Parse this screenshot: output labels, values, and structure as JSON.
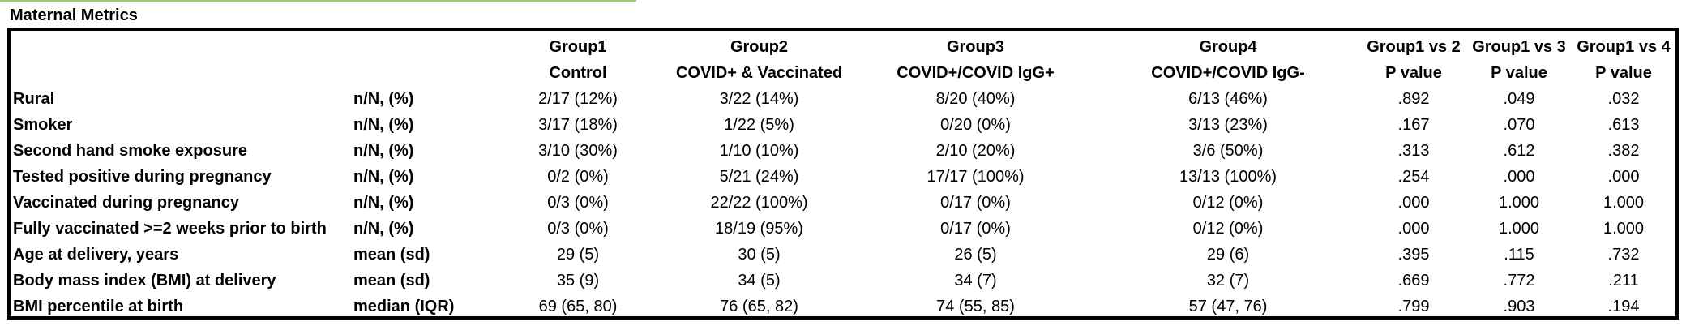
{
  "title": "Maternal Metrics",
  "columns": {
    "group_names": [
      "Group1",
      "Group2",
      "Group3",
      "Group4"
    ],
    "group_descriptions": [
      "Control",
      "COVID+ & Vaccinated",
      "COVID+/COVID IgG+",
      "COVID+/COVID IgG-"
    ],
    "comparisons": [
      "Group1 vs 2",
      "Group1 vs 3",
      "Group1 vs 4"
    ],
    "p_label": "P value"
  },
  "rows": [
    {
      "label": "Rural",
      "stat": "n/N, (%)",
      "g1": "2/17 (12%)",
      "g2": "3/22 (14%)",
      "g3": "8/20 (40%)",
      "g4": "6/13 (46%)",
      "p12": ".892",
      "p13": ".049",
      "p14": ".032"
    },
    {
      "label": "Smoker",
      "stat": "n/N, (%)",
      "g1": "3/17 (18%)",
      "g2": "1/22 (5%)",
      "g3": "0/20 (0%)",
      "g4": "3/13 (23%)",
      "p12": ".167",
      "p13": ".070",
      "p14": ".613"
    },
    {
      "label": "Second hand smoke exposure",
      "stat": "n/N, (%)",
      "g1": "3/10 (30%)",
      "g2": "1/10 (10%)",
      "g3": "2/10 (20%)",
      "g4": "3/6 (50%)",
      "p12": ".313",
      "p13": ".612",
      "p14": ".382"
    },
    {
      "label": "Tested positive during pregnancy",
      "stat": "n/N, (%)",
      "g1": "0/2 (0%)",
      "g2": "5/21 (24%)",
      "g3": "17/17 (100%)",
      "g4": "13/13 (100%)",
      "p12": ".254",
      "p13": ".000",
      "p14": ".000"
    },
    {
      "label": "Vaccinated during pregnancy",
      "stat": "n/N, (%)",
      "g1": "0/3 (0%)",
      "g2": "22/22 (100%)",
      "g3": "0/17 (0%)",
      "g4": "0/12 (0%)",
      "p12": ".000",
      "p13": "1.000",
      "p14": "1.000"
    },
    {
      "label": "Fully vaccinated >=2 weeks prior to birth",
      "stat": "n/N, (%)",
      "g1": "0/3 (0%)",
      "g2": "18/19 (95%)",
      "g3": "0/17 (0%)",
      "g4": "0/12 (0%)",
      "p12": ".000",
      "p13": "1.000",
      "p14": "1.000"
    },
    {
      "label": "Age at delivery, years",
      "stat": "mean (sd)",
      "g1": "29 (5)",
      "g2": "30 (5)",
      "g3": "26 (5)",
      "g4": "29 (6)",
      "p12": ".395",
      "p13": ".115",
      "p14": ".732"
    },
    {
      "label": "Body mass index (BMI) at delivery",
      "stat": "mean (sd)",
      "g1": "35 (9)",
      "g2": "34 (5)",
      "g3": "34 (7)",
      "g4": "32 (7)",
      "p12": ".669",
      "p13": ".772",
      "p14": ".211"
    },
    {
      "label": "BMI percentile at birth",
      "stat": "median (IQR)",
      "g1": "69 (65, 80)",
      "g2": "76 (65, 82)",
      "g3": "74 (55, 85)",
      "g4": "57 (47, 76)",
      "p12": ".799",
      "p13": ".903",
      "p14": ".194"
    }
  ]
}
